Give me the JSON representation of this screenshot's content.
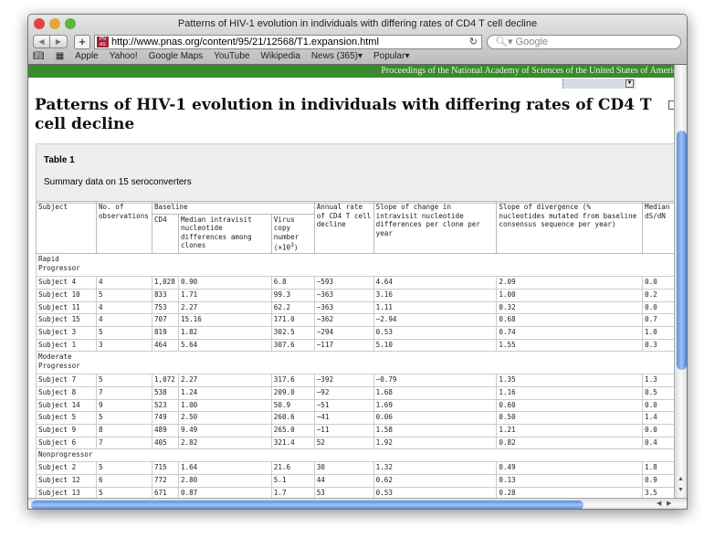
{
  "window": {
    "title": "Patterns of HIV-1 evolution in individuals with differing rates of CD4 T cell decline"
  },
  "toolbar": {
    "url": "http://www.pnas.org/content/95/21/12568/T1.expansion.html",
    "search_placeholder": "Google",
    "favicon_text": "PNAS"
  },
  "bookmarks": [
    "Apple",
    "Yahoo!",
    "Google Maps",
    "YouTube",
    "Wikipedia",
    "News (365)▾",
    "Popular▾"
  ],
  "banner": "Proceedings of the National Academy of Sciences of the United States of America",
  "page": {
    "title": "Patterns of HIV-1 evolution in individuals with differing rates of CD4 T cell decline",
    "table_label": "Table 1",
    "table_caption": "Summary data on 15 seroconverters"
  },
  "table": {
    "headers": {
      "subject": "Subject",
      "observations": "No. of observations",
      "baseline": "Baseline",
      "cd4": "CD4",
      "median": "Median intravisit nucleotide differences among clones",
      "virus": "Virus copy number (×10",
      "virus_exp": "3",
      "virus_end": ")",
      "annual": "Annual rate of CD4 T cell decline",
      "slope_change": "Slope of change in intravisit nucleotide differences per clone per year",
      "divergence": "Slope of divergence (% nucleotides mutated from baseline consensus sequence per year)",
      "dsdn": "Median dS/dN"
    },
    "groups": [
      {
        "label": "Rapid Progressor",
        "rows": [
          [
            "Subject 4",
            "4",
            "1,028",
            "0.90",
            "6.8",
            "−593",
            "4.64",
            "2.09",
            "0.0"
          ],
          [
            "Subject 10",
            "5",
            "833",
            "1.71",
            "99.3",
            "−363",
            "3.16",
            "1.00",
            "0.2"
          ],
          [
            "Subject 11",
            "4",
            "753",
            "2.27",
            "62.2",
            "−363",
            "1.11",
            "0.32",
            "0.0"
          ],
          [
            "Subject 15",
            "4",
            "707",
            "15.16",
            "171.0",
            "−362",
            "−2.94",
            "0.68",
            "0.7"
          ],
          [
            "Subject 3",
            "5",
            "819",
            "1.82",
            "302.5",
            "−294",
            "0.53",
            "0.74",
            "1.0"
          ],
          [
            "Subject 1",
            "3",
            "464",
            "5.64",
            "307.6",
            "−117",
            "5.10",
            "1.55",
            "0.3"
          ]
        ]
      },
      {
        "label": "Moderate Progressor",
        "rows": [
          [
            "Subject 7",
            "5",
            "1,072",
            "2.27",
            "317.6",
            "−392",
            "−0.79",
            "1.35",
            "1.3"
          ],
          [
            "Subject 8",
            "7",
            "538",
            "1.24",
            "209.0",
            "−92",
            "1.68",
            "1.16",
            "0.5"
          ],
          [
            "Subject 14",
            "9",
            "523",
            "1.00",
            "50.9",
            "−51",
            "1.69",
            "0.60",
            "0.0"
          ],
          [
            "Subject 5",
            "5",
            "749",
            "2.50",
            "260.6",
            "−41",
            "0.06",
            "0.50",
            "1.4"
          ],
          [
            "Subject 9",
            "8",
            "489",
            "9.49",
            "265.0",
            "−11",
            "1.58",
            "1.21",
            "0.0"
          ],
          [
            "Subject 6",
            "7",
            "405",
            "2.82",
            "321.4",
            "52",
            "1.92",
            "0.82",
            "0.4"
          ]
        ]
      },
      {
        "label": "Nonprogressor",
        "rows": [
          [
            "Subject 2",
            "5",
            "715",
            "1.64",
            "21.6",
            "30",
            "1.32",
            "0.49",
            "1.8"
          ],
          [
            "Subject 12",
            "6",
            "772",
            "2.80",
            "5.1",
            "44",
            "0.62",
            "0.13",
            "0.9"
          ],
          [
            "Subject 13",
            "5",
            "671",
            "0.87",
            "1.7",
            "53",
            "0.53",
            "0.28",
            "3.5"
          ]
        ]
      }
    ]
  },
  "colors": {
    "banner": "#3a8a2e",
    "scroll_thumb": "#6f9fe8"
  }
}
